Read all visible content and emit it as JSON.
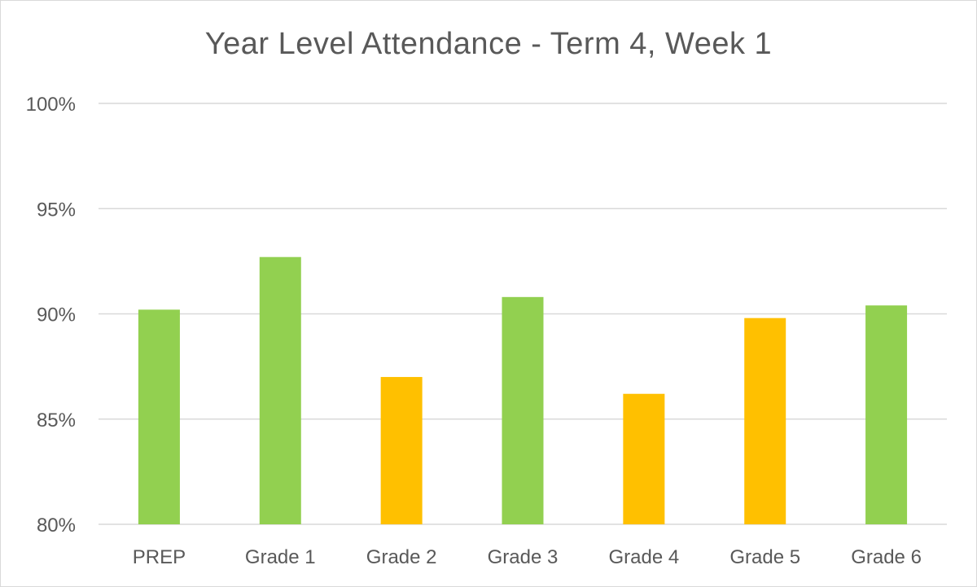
{
  "chart_data": {
    "type": "bar",
    "title": "Year Level Attendance - Term 4, Week 1",
    "xlabel": "",
    "ylabel": "",
    "categories": [
      "PREP",
      "Grade 1",
      "Grade 2",
      "Grade 3",
      "Grade 4",
      "Grade 5",
      "Grade 6"
    ],
    "values": [
      90.2,
      92.7,
      87.0,
      90.8,
      86.2,
      89.8,
      90.4
    ],
    "bar_colors": [
      "#92d050",
      "#92d050",
      "#ffc000",
      "#92d050",
      "#ffc000",
      "#ffc000",
      "#92d050"
    ],
    "ylim": [
      80,
      100
    ],
    "yticks": [
      80,
      85,
      90,
      95,
      100
    ],
    "ytick_labels": [
      "80%",
      "85%",
      "90%",
      "95%",
      "100%"
    ],
    "grid": true,
    "legend": "none"
  }
}
